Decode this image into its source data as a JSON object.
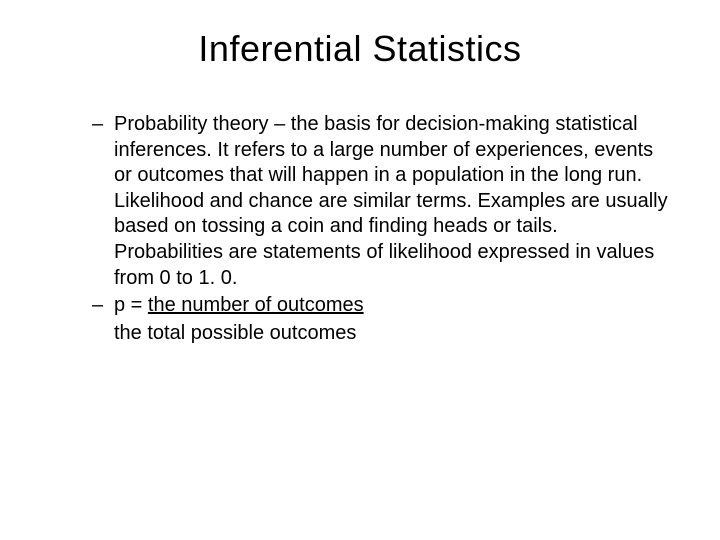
{
  "slide": {
    "title": "Inferential Statistics",
    "bullets": [
      {
        "text": "Probability theory – the basis for decision-making statistical inferences. It refers to a large number of experiences, events or outcomes that will happen in a population in the long run.  Likelihood and chance are similar terms.  Examples are usually based on tossing a coin and finding heads or tails. Probabilities are statements of likelihood expressed in values from 0 to 1. 0."
      },
      {
        "prefix": "p = ",
        "underlined": "the number of outcomes",
        "subline": "the total possible outcomes"
      }
    ]
  },
  "style": {
    "background_color": "#ffffff",
    "text_color": "#000000",
    "title_fontsize": 36,
    "body_fontsize": 20,
    "font_family": "Arial"
  }
}
